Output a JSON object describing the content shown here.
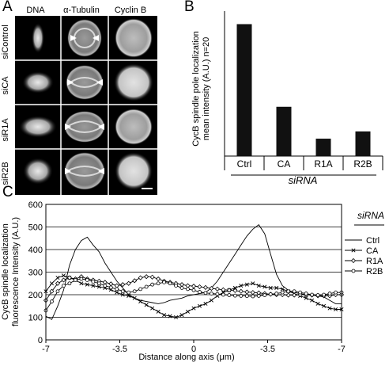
{
  "panels": {
    "a": {
      "letter": "A",
      "columns": [
        "DNA",
        "α-Tubulin",
        "Cyclin B"
      ],
      "rows": [
        "siControl",
        "siCA",
        "siR1A",
        "siR2B"
      ]
    },
    "b": {
      "letter": "B"
    },
    "c": {
      "letter": "C"
    }
  },
  "chart_data": [
    {
      "type": "bar",
      "categories": [
        "Ctrl",
        "CA",
        "R1A",
        "R2B"
      ],
      "values": [
        91,
        34,
        12,
        17
      ],
      "ylabel_lines": [
        "CycB spindle pole localization",
        "mean intensity (A.U.) n=20"
      ],
      "xlabel": "siRNA",
      "ylim": [
        0,
        100
      ],
      "bar_color": "#111111"
    },
    {
      "type": "line",
      "ylabel_lines": [
        "CycB spindle localization",
        "fluorescence Intensity (A.U.)"
      ],
      "xlabel": "Distance along axis (μm)",
      "yticks": [
        0,
        100,
        200,
        300,
        400,
        500,
        600
      ],
      "ylim": [
        0,
        600
      ],
      "xticks": [
        "-7",
        "-3.5",
        "0",
        "-3.5",
        "-7"
      ],
      "xlim": [
        0,
        100
      ],
      "grid": true,
      "legend_title": "siRNA",
      "legend_position": "right",
      "series": [
        {
          "name": "Ctrl",
          "marker": "none",
          "x": [
            0,
            2,
            4,
            6,
            8,
            10,
            12,
            14,
            16,
            18,
            20,
            22,
            24,
            26,
            28,
            30,
            32,
            34,
            36,
            38,
            40,
            42,
            44,
            46,
            48,
            50,
            52,
            54,
            56,
            58,
            60,
            62,
            64,
            66,
            68,
            70,
            72,
            74,
            76,
            78,
            80,
            82,
            84,
            86,
            88,
            90,
            92,
            94,
            96,
            98,
            100
          ],
          "y": [
            105,
            90,
            150,
            220,
            330,
            400,
            440,
            455,
            420,
            390,
            340,
            300,
            260,
            230,
            200,
            185,
            175,
            170,
            165,
            160,
            165,
            175,
            180,
            185,
            195,
            200,
            205,
            210,
            230,
            260,
            300,
            340,
            380,
            420,
            460,
            490,
            510,
            470,
            380,
            290,
            240,
            220,
            210,
            205,
            200,
            200,
            195,
            190,
            175,
            160,
            160
          ]
        },
        {
          "name": "CA",
          "marker": "x",
          "x": [
            0,
            2,
            4,
            6,
            8,
            10,
            12,
            14,
            16,
            18,
            20,
            22,
            24,
            26,
            28,
            30,
            32,
            34,
            36,
            38,
            40,
            42,
            44,
            46,
            48,
            50,
            52,
            54,
            56,
            58,
            60,
            62,
            64,
            66,
            68,
            70,
            72,
            74,
            76,
            78,
            80,
            82,
            84,
            86,
            88,
            90,
            92,
            94,
            96,
            98,
            100
          ],
          "y": [
            215,
            250,
            275,
            285,
            275,
            265,
            250,
            245,
            240,
            235,
            230,
            222,
            210,
            200,
            195,
            185,
            170,
            155,
            140,
            125,
            110,
            105,
            100,
            110,
            125,
            140,
            150,
            160,
            175,
            195,
            210,
            220,
            230,
            240,
            245,
            250,
            240,
            235,
            230,
            230,
            225,
            215,
            205,
            195,
            185,
            175,
            160,
            150,
            140,
            135,
            135
          ]
        },
        {
          "name": "R1A",
          "marker": "diamond",
          "x": [
            0,
            2,
            4,
            6,
            8,
            10,
            12,
            14,
            16,
            18,
            20,
            22,
            24,
            26,
            28,
            30,
            32,
            34,
            36,
            38,
            40,
            42,
            44,
            46,
            48,
            50,
            52,
            54,
            56,
            58,
            60,
            62,
            64,
            66,
            68,
            70,
            72,
            74,
            76,
            78,
            80,
            82,
            84,
            86,
            88,
            90,
            92,
            94,
            96,
            98,
            100
          ],
          "y": [
            175,
            215,
            250,
            265,
            275,
            270,
            280,
            270,
            265,
            260,
            255,
            248,
            240,
            245,
            250,
            262,
            275,
            280,
            278,
            270,
            260,
            255,
            250,
            245,
            240,
            238,
            235,
            232,
            228,
            225,
            222,
            220,
            218,
            215,
            212,
            210,
            208,
            205,
            202,
            200,
            200,
            198,
            198,
            200,
            200,
            198,
            195,
            195,
            195,
            200,
            200
          ]
        },
        {
          "name": "R2B",
          "marker": "circle",
          "x": [
            0,
            2,
            4,
            6,
            8,
            10,
            12,
            14,
            16,
            18,
            20,
            22,
            24,
            26,
            28,
            30,
            32,
            34,
            36,
            38,
            40,
            42,
            44,
            46,
            48,
            50,
            52,
            54,
            56,
            58,
            60,
            62,
            64,
            66,
            68,
            70,
            72,
            74,
            76,
            78,
            80,
            82,
            84,
            86,
            88,
            90,
            92,
            94,
            96,
            98,
            100
          ],
          "y": [
            130,
            170,
            215,
            240,
            250,
            265,
            270,
            265,
            258,
            250,
            240,
            232,
            225,
            215,
            210,
            215,
            225,
            235,
            245,
            250,
            255,
            250,
            240,
            230,
            225,
            220,
            212,
            208,
            205,
            203,
            200,
            198,
            196,
            195,
            194,
            193,
            195,
            198,
            202,
            205,
            210,
            215,
            215,
            210,
            205,
            200,
            198,
            200,
            205,
            210,
            210
          ]
        }
      ]
    }
  ]
}
